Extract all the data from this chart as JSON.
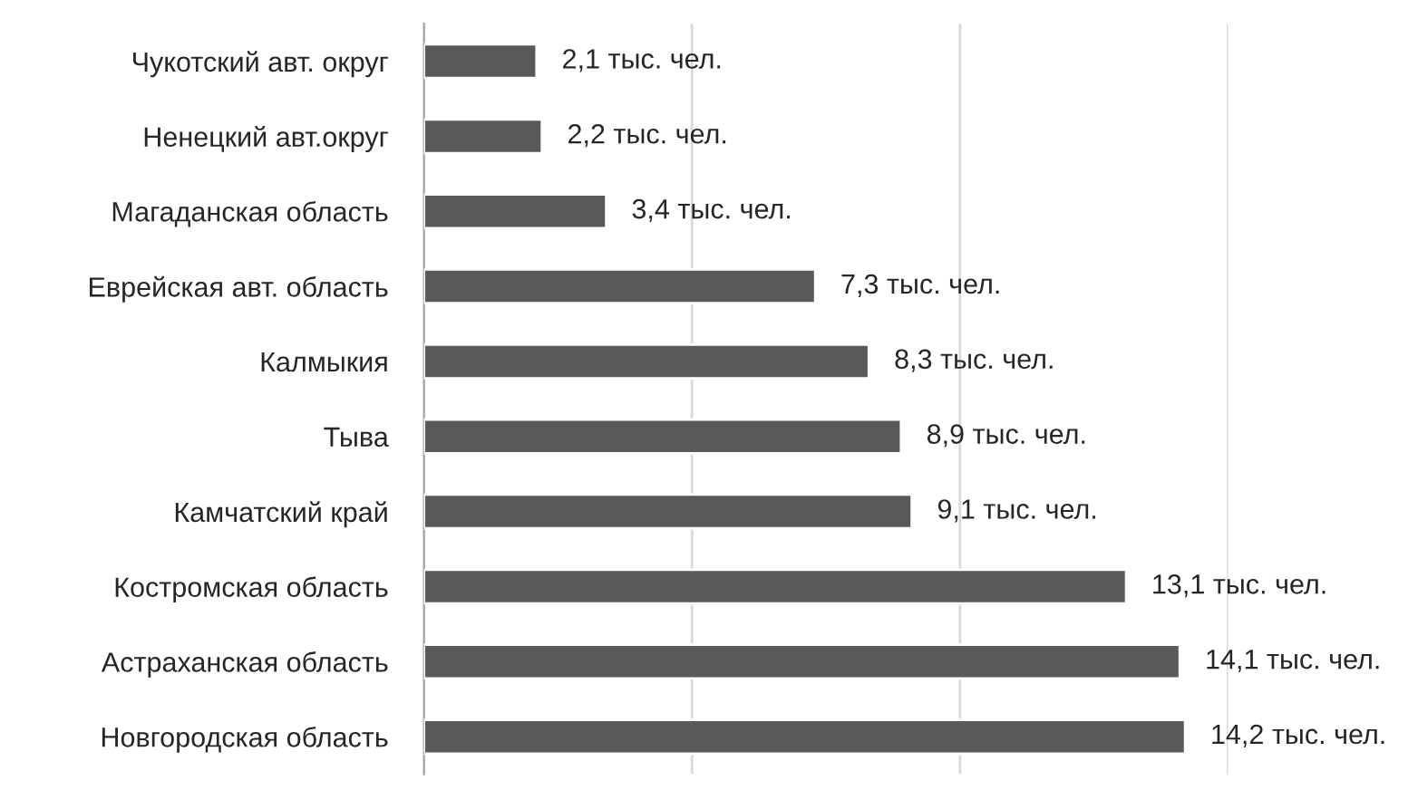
{
  "chart_data": {
    "type": "bar",
    "orientation": "horizontal",
    "categories": [
      "Чукотский авт. округ",
      "Ненецкий авт.округ",
      "Магаданская область",
      "Еврейская авт. область",
      "Калмыкия",
      "Тыва",
      "Камчатский край",
      "Костромская область",
      "Астраханская область",
      "Новгородская область"
    ],
    "values": [
      2.1,
      2.2,
      3.4,
      7.3,
      8.3,
      8.9,
      9.1,
      13.1,
      14.1,
      14.2
    ],
    "value_labels": [
      "2,1 тыс. чел.",
      "2,2 тыс. чел.",
      "3,4 тыс. чел.",
      "7,3 тыс. чел.",
      "8,3 тыс. чел.",
      "8,9 тыс. чел.",
      "9,1 тыс. чел.",
      "13,1 тыс. чел.",
      "14,1 тыс. чел.",
      "14,2 тыс. чел."
    ],
    "color": "#595959",
    "xlim": [
      0,
      15
    ],
    "xticks": [
      {
        "value": 0,
        "label": null
      },
      {
        "value": 5,
        "label": null
      },
      {
        "value": 10,
        "label": null
      },
      {
        "value": 15,
        "label": null
      }
    ],
    "grid": "x",
    "tick_labels": "y"
  }
}
